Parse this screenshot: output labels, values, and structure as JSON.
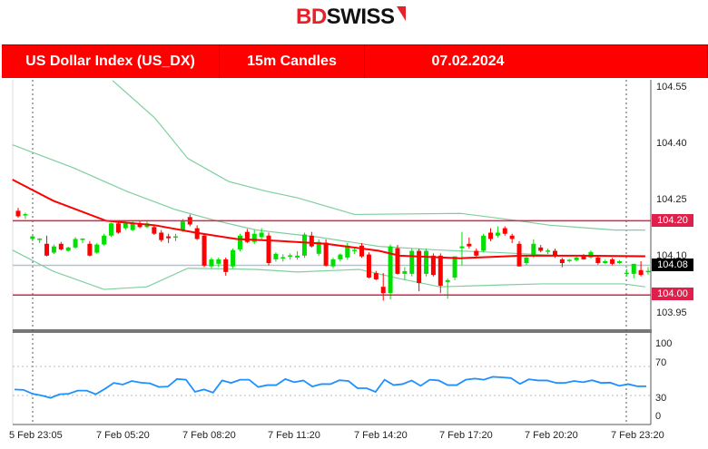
{
  "brand": {
    "part1": "BD",
    "part2": "SWISS"
  },
  "header": {
    "instrument": "US Dollar Index (US_DX)",
    "timeframe": "15m Candles",
    "date": "07.02.2024"
  },
  "colors": {
    "bull": "#00e000",
    "bear": "#ff0000",
    "ma": "#ff0000",
    "bands": "#7fcf9f",
    "levels": "#e0204a",
    "rsi": "#1e90ff",
    "current_price": "#000000"
  },
  "chart_data": [
    {
      "type": "candlestick",
      "ylim": [
        103.91,
        104.58
      ],
      "y_ticks": [
        "104.55",
        "104.40",
        "104.25",
        "104.10",
        "103.95"
      ],
      "x_ticks": [
        "5 Feb 23:05",
        "7 Feb 05:20",
        "7 Feb 08:20",
        "7 Feb 11:20",
        "7 Feb 14:20",
        "7 Feb 17:20",
        "7 Feb 20:20",
        "7 Feb 23:20"
      ],
      "levels": [
        {
          "label": "104.20",
          "value": 104.2
        },
        {
          "label": "104.00",
          "value": 104.0
        }
      ],
      "current_price": {
        "label": "104.08",
        "value": 104.08
      },
      "candles_ohlc": [
        [
          104.227,
          104.235,
          104.208,
          104.212
        ],
        [
          104.215,
          104.222,
          104.205,
          104.218
        ],
        [
          104.151,
          104.162,
          104.145,
          104.158
        ],
        [
          104.15,
          104.153,
          104.14,
          104.152
        ],
        [
          104.138,
          104.16,
          104.104,
          104.106
        ],
        [
          104.114,
          104.136,
          104.11,
          104.131
        ],
        [
          104.138,
          104.143,
          104.12,
          104.123
        ],
        [
          104.119,
          104.13,
          104.117,
          104.128
        ],
        [
          104.128,
          104.156,
          104.125,
          104.151
        ],
        [
          104.15,
          104.153,
          104.14,
          104.152
        ],
        [
          104.138,
          104.145,
          104.104,
          104.106
        ],
        [
          104.114,
          104.14,
          104.111,
          104.136
        ],
        [
          104.136,
          104.165,
          104.133,
          104.16
        ],
        [
          104.16,
          104.195,
          104.157,
          104.193
        ],
        [
          104.193,
          104.198,
          104.165,
          104.168
        ],
        [
          104.18,
          104.198,
          104.175,
          104.193
        ],
        [
          104.175,
          104.198,
          104.172,
          104.193
        ],
        [
          104.193,
          104.198,
          104.18,
          104.183
        ],
        [
          104.183,
          104.198,
          104.18,
          104.193
        ],
        [
          104.183,
          104.19,
          104.162,
          104.165
        ],
        [
          104.168,
          104.175,
          104.143,
          104.148
        ],
        [
          104.158,
          104.165,
          104.14,
          104.153
        ],
        [
          104.155,
          104.165,
          104.145,
          104.158
        ],
        [
          104.173,
          104.205,
          104.17,
          104.198
        ],
        [
          104.21,
          104.217,
          104.185,
          104.19
        ],
        [
          104.18,
          104.188,
          104.148,
          104.151
        ],
        [
          104.16,
          104.165,
          104.075,
          104.079
        ],
        [
          104.077,
          104.101,
          104.072,
          104.096
        ],
        [
          104.084,
          104.101,
          104.075,
          104.096
        ],
        [
          104.096,
          104.101,
          104.052,
          104.062
        ],
        [
          104.077,
          104.125,
          104.072,
          104.121
        ],
        [
          104.123,
          104.165,
          104.118,
          104.16
        ],
        [
          104.17,
          104.178,
          104.14,
          104.143
        ],
        [
          104.143,
          104.175,
          104.138,
          104.165
        ],
        [
          104.156,
          104.18,
          104.15,
          104.168
        ],
        [
          104.16,
          104.168,
          104.08,
          104.086
        ],
        [
          104.096,
          104.115,
          104.09,
          104.111
        ],
        [
          104.1,
          104.11,
          104.09,
          104.102
        ],
        [
          104.105,
          104.112,
          104.095,
          104.107
        ],
        [
          104.101,
          104.118,
          104.095,
          104.106
        ],
        [
          104.106,
          104.168,
          104.1,
          104.163
        ],
        [
          104.16,
          104.17,
          104.128,
          104.131
        ],
        [
          104.111,
          104.15,
          104.105,
          104.143
        ],
        [
          104.141,
          104.15,
          104.077,
          104.079
        ],
        [
          104.077,
          104.1,
          104.072,
          104.096
        ],
        [
          104.096,
          104.112,
          104.09,
          104.109
        ],
        [
          104.101,
          104.14,
          104.095,
          104.133
        ],
        [
          104.12,
          104.13,
          104.11,
          104.122
        ],
        [
          104.133,
          104.14,
          104.1,
          104.104
        ],
        [
          104.109,
          104.115,
          104.045,
          104.047
        ],
        [
          104.059,
          104.065,
          104.04,
          104.042
        ],
        [
          104.022,
          104.059,
          103.985,
          104.005
        ],
        [
          104.005,
          104.136,
          103.988,
          104.131
        ],
        [
          104.126,
          104.135,
          104.055,
          104.057
        ],
        [
          104.057,
          104.075,
          104.04,
          104.064
        ],
        [
          104.057,
          104.125,
          104.05,
          104.119
        ],
        [
          104.119,
          104.125,
          104.01,
          104.032
        ],
        [
          104.057,
          104.125,
          104.05,
          104.119
        ],
        [
          104.106,
          104.112,
          104.05,
          104.054
        ],
        [
          104.106,
          104.112,
          104.005,
          104.025
        ],
        [
          104.035,
          104.045,
          103.99,
          104.04
        ],
        [
          104.047,
          104.104,
          104.04,
          104.104
        ],
        [
          104.126,
          104.17,
          104.08,
          104.131
        ],
        [
          104.138,
          104.155,
          104.125,
          104.131
        ],
        [
          104.119,
          104.125,
          104.1,
          104.106
        ],
        [
          104.119,
          104.165,
          104.115,
          104.16
        ],
        [
          104.168,
          104.18,
          104.145,
          104.151
        ],
        [
          104.16,
          104.185,
          104.155,
          104.168
        ],
        [
          104.18,
          104.185,
          104.16,
          104.165
        ],
        [
          104.16,
          104.165,
          104.14,
          104.151
        ],
        [
          104.138,
          104.145,
          104.077,
          104.077
        ],
        [
          104.086,
          104.105,
          104.08,
          104.101
        ],
        [
          104.106,
          104.15,
          104.1,
          104.138
        ],
        [
          104.128,
          104.135,
          104.115,
          104.119
        ],
        [
          104.117,
          104.125,
          104.11,
          104.12
        ],
        [
          104.119,
          104.125,
          104.1,
          104.106
        ],
        [
          104.096,
          104.1,
          104.075,
          104.086
        ],
        [
          104.093,
          104.097,
          104.088,
          104.095
        ],
        [
          104.094,
          104.104,
          104.09,
          104.101
        ],
        [
          104.106,
          104.11,
          104.095,
          104.096
        ],
        [
          104.101,
          104.12,
          104.098,
          104.116
        ],
        [
          104.101,
          104.105,
          104.082,
          104.086
        ],
        [
          104.086,
          104.095,
          104.084,
          104.091
        ],
        [
          104.096,
          104.1,
          104.08,
          104.084
        ],
        [
          104.086,
          104.094,
          104.084,
          104.091
        ],
        [
          104.058,
          104.07,
          104.05,
          104.06
        ],
        [
          104.057,
          104.075,
          104.045,
          104.084
        ],
        [
          104.067,
          104.091,
          104.05,
          104.054
        ],
        [
          104.062,
          104.075,
          104.055,
          104.065
        ]
      ],
      "moving_average": [
        [
          -0.8,
          104.311
        ],
        [
          4.9,
          104.254
        ],
        [
          12.3,
          104.2
        ],
        [
          19.1,
          104.188
        ],
        [
          24.8,
          104.168
        ],
        [
          30.5,
          104.151
        ],
        [
          36.2,
          104.146
        ],
        [
          43,
          104.138
        ],
        [
          50.4,
          104.119
        ],
        [
          53.3,
          104.106
        ],
        [
          61.8,
          104.099
        ],
        [
          70.3,
          104.106
        ],
        [
          78.9,
          104.106
        ],
        [
          87.6,
          104.104
        ]
      ],
      "band_outer_upper": [
        [
          13.2,
          104.578
        ],
        [
          19.1,
          104.477
        ],
        [
          23.7,
          104.368
        ],
        [
          29.4,
          104.306
        ],
        [
          34.4,
          104.281
        ],
        [
          39,
          104.262
        ],
        [
          47,
          104.217
        ],
        [
          61.8,
          104.22
        ],
        [
          69.1,
          104.202
        ],
        [
          74.3,
          104.188
        ],
        [
          83.4,
          104.175
        ],
        [
          87.6,
          104.175
        ]
      ],
      "band_upper": [
        [
          -0.8,
          104.405
        ],
        [
          7.7,
          104.343
        ],
        [
          15.2,
          104.279
        ],
        [
          22,
          104.23
        ],
        [
          27.7,
          104.2
        ],
        [
          33.3,
          104.175
        ],
        [
          41.9,
          104.156
        ],
        [
          50.4,
          104.131
        ],
        [
          58.9,
          104.121
        ],
        [
          67.5,
          104.114
        ],
        [
          75.9,
          104.106
        ],
        [
          87.6,
          104.106
        ]
      ],
      "band_lower": [
        [
          -0.8,
          104.121
        ],
        [
          4.9,
          104.064
        ],
        [
          12,
          104.015
        ],
        [
          18,
          104.022
        ],
        [
          23.7,
          104.072
        ],
        [
          33.3,
          104.069
        ],
        [
          39,
          104.062
        ],
        [
          47.6,
          104.069
        ],
        [
          53.3,
          104.044
        ],
        [
          58.9,
          104.022
        ],
        [
          67.5,
          104.027
        ],
        [
          73.2,
          104.03
        ],
        [
          84.6,
          104.03
        ],
        [
          87.6,
          104.022
        ]
      ]
    },
    {
      "type": "line",
      "ylim": [
        0,
        100
      ],
      "y_ticks": [
        "100",
        "70",
        "30",
        "0"
      ],
      "gridlines": [
        70,
        30
      ],
      "values": [
        38.3,
        37.7,
        32.3,
        30,
        26.7,
        31.7,
        32.3,
        36.7,
        36.7,
        31.7,
        39,
        47.3,
        45,
        50,
        47.7,
        46.7,
        41.7,
        42.3,
        52.7,
        51.7,
        35,
        38.3,
        34,
        50.7,
        47.3,
        51.7,
        51.7,
        41.7,
        44.3,
        44.3,
        52.7,
        48.3,
        50.7,
        42.3,
        45.7,
        45.7,
        51,
        50,
        40,
        40,
        35,
        51.7,
        44.3,
        45.7,
        50.7,
        43.3,
        51.7,
        50.7,
        44.3,
        44.3,
        51.7,
        53.3,
        51.7,
        55.7,
        55,
        54,
        46,
        52.3,
        50.7,
        50.7,
        47.3,
        47.3,
        50,
        48.3,
        51,
        47.3,
        47.7,
        43.3,
        45.7,
        42.7,
        42.7
      ]
    }
  ]
}
